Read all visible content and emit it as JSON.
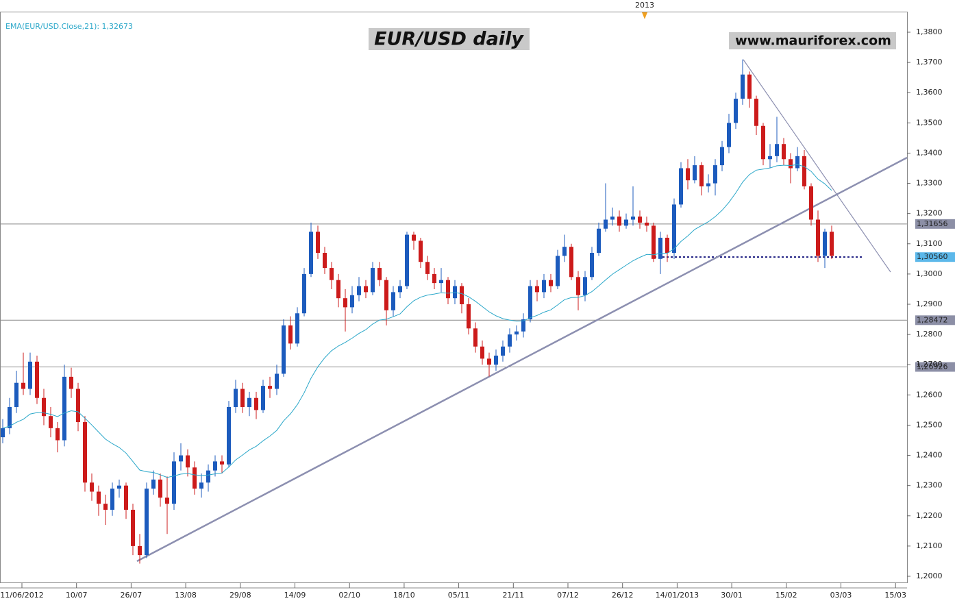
{
  "chart_data": {
    "type": "candlestick",
    "title": "EUR/USD daily",
    "watermark": "www.mauriforex.com",
    "indicator_label": "EMA(EUR/USD.Close,21): 1,32673",
    "period_marker": "2013",
    "xtick_labels": [
      "11/06/2012",
      "10/07",
      "26/07",
      "13/08",
      "29/08",
      "14/09",
      "02/10",
      "18/10",
      "05/11",
      "21/11",
      "07/12",
      "26/12",
      "14/01/2013",
      "30/01",
      "15/02",
      "03/03",
      "15/03"
    ],
    "up_color": "#1c5bbd",
    "down_color": "#cc1b1b",
    "ema_color": "#2aa7c9",
    "ylim": [
      1.2,
      1.38
    ],
    "yticks": [
      {
        "value": 1.2,
        "label": "1,2000"
      },
      {
        "value": 1.21,
        "label": "1,2100"
      },
      {
        "value": 1.22,
        "label": "1,2200"
      },
      {
        "value": 1.23,
        "label": "1,2300"
      },
      {
        "value": 1.24,
        "label": "1,2400"
      },
      {
        "value": 1.25,
        "label": "1,2500"
      },
      {
        "value": 1.26,
        "label": "1,2600"
      },
      {
        "value": 1.27,
        "label": "1,2700"
      },
      {
        "value": 1.28,
        "label": "1,2800"
      },
      {
        "value": 1.29,
        "label": "1,2900"
      },
      {
        "value": 1.3,
        "label": "1,3000"
      },
      {
        "value": 1.31,
        "label": "1,3100"
      },
      {
        "value": 1.32,
        "label": "1,3200"
      },
      {
        "value": 1.33,
        "label": "1,3300"
      },
      {
        "value": 1.34,
        "label": "1,3400"
      },
      {
        "value": 1.35,
        "label": "1,3500"
      },
      {
        "value": 1.36,
        "label": "1,3600"
      },
      {
        "value": 1.37,
        "label": "1,3700"
      },
      {
        "value": 1.38,
        "label": "1,3800"
      }
    ],
    "levels": [
      {
        "value": 1.31656,
        "label": "1,31656",
        "style": "solid",
        "color": "#8c8fa6"
      },
      {
        "value": 1.3056,
        "label": "1,30560",
        "style": "dotted",
        "color": "#5cb8ea"
      },
      {
        "value": 1.28472,
        "label": "1,28472",
        "style": "solid",
        "color": "#8c8fa6"
      },
      {
        "value": 1.26926,
        "label": "1,26926",
        "style": "solid",
        "color": "#8c8fa6"
      }
    ],
    "candles": [
      [
        1.246,
        1.252,
        1.244,
        1.249
      ],
      [
        1.249,
        1.259,
        1.247,
        1.256
      ],
      [
        1.256,
        1.268,
        1.254,
        1.264
      ],
      [
        1.264,
        1.274,
        1.26,
        1.262
      ],
      [
        1.262,
        1.274,
        1.26,
        1.271
      ],
      [
        1.271,
        1.273,
        1.257,
        1.259
      ],
      [
        1.259,
        1.262,
        1.25,
        1.253
      ],
      [
        1.253,
        1.256,
        1.246,
        1.249
      ],
      [
        1.249,
        1.251,
        1.241,
        1.245
      ],
      [
        1.245,
        1.27,
        1.243,
        1.266
      ],
      [
        1.266,
        1.269,
        1.259,
        1.262
      ],
      [
        1.262,
        1.264,
        1.248,
        1.251
      ],
      [
        1.251,
        1.253,
        1.228,
        1.231
      ],
      [
        1.231,
        1.234,
        1.225,
        1.228
      ],
      [
        1.228,
        1.23,
        1.22,
        1.224
      ],
      [
        1.224,
        1.227,
        1.217,
        1.222
      ],
      [
        1.222,
        1.231,
        1.22,
        1.229
      ],
      [
        1.229,
        1.232,
        1.226,
        1.23
      ],
      [
        1.23,
        1.231,
        1.219,
        1.222
      ],
      [
        1.222,
        1.224,
        1.207,
        1.21
      ],
      [
        1.21,
        1.214,
        1.2042,
        1.207
      ],
      [
        1.207,
        1.231,
        1.206,
        1.229
      ],
      [
        1.229,
        1.235,
        1.227,
        1.232
      ],
      [
        1.232,
        1.234,
        1.223,
        1.226
      ],
      [
        1.226,
        1.233,
        1.214,
        1.224
      ],
      [
        1.224,
        1.241,
        1.222,
        1.238
      ],
      [
        1.238,
        1.244,
        1.235,
        1.24
      ],
      [
        1.24,
        1.242,
        1.233,
        1.236
      ],
      [
        1.236,
        1.238,
        1.227,
        1.229
      ],
      [
        1.229,
        1.234,
        1.226,
        1.231
      ],
      [
        1.231,
        1.237,
        1.228,
        1.235
      ],
      [
        1.235,
        1.24,
        1.233,
        1.238
      ],
      [
        1.238,
        1.24,
        1.234,
        1.237
      ],
      [
        1.237,
        1.258,
        1.236,
        1.256
      ],
      [
        1.256,
        1.265,
        1.254,
        1.262
      ],
      [
        1.262,
        1.264,
        1.254,
        1.256
      ],
      [
        1.256,
        1.261,
        1.253,
        1.259
      ],
      [
        1.259,
        1.261,
        1.252,
        1.255
      ],
      [
        1.255,
        1.265,
        1.254,
        1.263
      ],
      [
        1.263,
        1.266,
        1.259,
        1.262
      ],
      [
        1.262,
        1.27,
        1.26,
        1.267
      ],
      [
        1.267,
        1.285,
        1.266,
        1.283
      ],
      [
        1.283,
        1.286,
        1.275,
        1.277
      ],
      [
        1.277,
        1.289,
        1.276,
        1.287
      ],
      [
        1.287,
        1.302,
        1.286,
        1.3
      ],
      [
        1.3,
        1.317,
        1.299,
        1.314
      ],
      [
        1.314,
        1.316,
        1.305,
        1.307
      ],
      [
        1.307,
        1.309,
        1.3,
        1.302
      ],
      [
        1.302,
        1.304,
        1.295,
        1.298
      ],
      [
        1.298,
        1.3,
        1.289,
        1.292
      ],
      [
        1.292,
        1.295,
        1.281,
        1.289
      ],
      [
        1.289,
        1.296,
        1.287,
        1.293
      ],
      [
        1.293,
        1.299,
        1.291,
        1.296
      ],
      [
        1.296,
        1.298,
        1.292,
        1.294
      ],
      [
        1.294,
        1.304,
        1.293,
        1.302
      ],
      [
        1.302,
        1.304,
        1.296,
        1.298
      ],
      [
        1.298,
        1.299,
        1.283,
        1.288
      ],
      [
        1.288,
        1.296,
        1.286,
        1.294
      ],
      [
        1.294,
        1.298,
        1.292,
        1.296
      ],
      [
        1.296,
        1.314,
        1.295,
        1.313
      ],
      [
        1.313,
        1.314,
        1.308,
        1.311
      ],
      [
        1.311,
        1.312,
        1.302,
        1.304
      ],
      [
        1.304,
        1.306,
        1.298,
        1.3
      ],
      [
        1.3,
        1.302,
        1.295,
        1.297
      ],
      [
        1.297,
        1.302,
        1.294,
        1.298
      ],
      [
        1.298,
        1.299,
        1.29,
        1.292
      ],
      [
        1.292,
        1.298,
        1.29,
        1.296
      ],
      [
        1.296,
        1.297,
        1.287,
        1.29
      ],
      [
        1.29,
        1.292,
        1.28,
        1.282
      ],
      [
        1.282,
        1.284,
        1.274,
        1.276
      ],
      [
        1.276,
        1.278,
        1.27,
        1.272
      ],
      [
        1.272,
        1.274,
        1.2661,
        1.27
      ],
      [
        1.27,
        1.275,
        1.268,
        1.273
      ],
      [
        1.273,
        1.278,
        1.271,
        1.276
      ],
      [
        1.276,
        1.282,
        1.274,
        1.28
      ],
      [
        1.28,
        1.283,
        1.278,
        1.281
      ],
      [
        1.281,
        1.287,
        1.279,
        1.285
      ],
      [
        1.285,
        1.298,
        1.284,
        1.296
      ],
      [
        1.296,
        1.298,
        1.291,
        1.294
      ],
      [
        1.294,
        1.3,
        1.292,
        1.298
      ],
      [
        1.298,
        1.3,
        1.294,
        1.296
      ],
      [
        1.296,
        1.308,
        1.295,
        1.306
      ],
      [
        1.306,
        1.313,
        1.304,
        1.309
      ],
      [
        1.309,
        1.31,
        1.298,
        1.299
      ],
      [
        1.299,
        1.301,
        1.288,
        1.293
      ],
      [
        1.293,
        1.301,
        1.291,
        1.299
      ],
      [
        1.299,
        1.309,
        1.298,
        1.307
      ],
      [
        1.307,
        1.317,
        1.306,
        1.315
      ],
      [
        1.315,
        1.33,
        1.314,
        1.318
      ],
      [
        1.318,
        1.322,
        1.316,
        1.319
      ],
      [
        1.319,
        1.321,
        1.314,
        1.316
      ],
      [
        1.316,
        1.32,
        1.315,
        1.318
      ],
      [
        1.318,
        1.329,
        1.316,
        1.319
      ],
      [
        1.319,
        1.321,
        1.315,
        1.317
      ],
      [
        1.317,
        1.319,
        1.314,
        1.316
      ],
      [
        1.316,
        1.317,
        1.304,
        1.305
      ],
      [
        1.305,
        1.314,
        1.3,
        1.312
      ],
      [
        1.312,
        1.313,
        1.304,
        1.307
      ],
      [
        1.307,
        1.325,
        1.305,
        1.323
      ],
      [
        1.323,
        1.337,
        1.322,
        1.335
      ],
      [
        1.335,
        1.338,
        1.328,
        1.331
      ],
      [
        1.331,
        1.339,
        1.33,
        1.336
      ],
      [
        1.336,
        1.337,
        1.326,
        1.329
      ],
      [
        1.329,
        1.333,
        1.327,
        1.33
      ],
      [
        1.33,
        1.338,
        1.326,
        1.336
      ],
      [
        1.336,
        1.344,
        1.334,
        1.342
      ],
      [
        1.342,
        1.353,
        1.34,
        1.35
      ],
      [
        1.35,
        1.36,
        1.348,
        1.358
      ],
      [
        1.358,
        1.371,
        1.356,
        1.366
      ],
      [
        1.366,
        1.367,
        1.355,
        1.358
      ],
      [
        1.358,
        1.359,
        1.346,
        1.349
      ],
      [
        1.349,
        1.35,
        1.336,
        1.338
      ],
      [
        1.338,
        1.343,
        1.335,
        1.339
      ],
      [
        1.339,
        1.352,
        1.337,
        1.343
      ],
      [
        1.343,
        1.345,
        1.336,
        1.338
      ],
      [
        1.338,
        1.34,
        1.33,
        1.335
      ],
      [
        1.335,
        1.342,
        1.334,
        1.339
      ],
      [
        1.339,
        1.341,
        1.328,
        1.329
      ],
      [
        1.329,
        1.33,
        1.316,
        1.318
      ],
      [
        1.318,
        1.321,
        1.304,
        1.306
      ],
      [
        1.306,
        1.315,
        1.302,
        1.314
      ],
      [
        1.314,
        1.316,
        1.305,
        1.306
      ]
    ]
  }
}
